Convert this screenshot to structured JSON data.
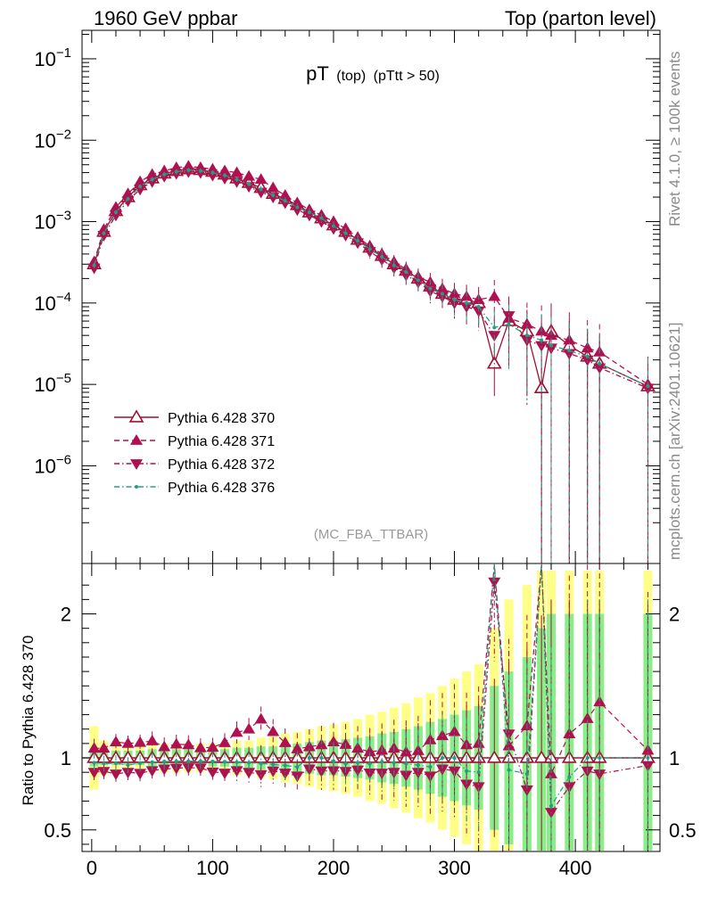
{
  "header": {
    "left": "1960 GeV ppbar",
    "right": "Top (parton level)"
  },
  "side_labels": {
    "rivet": "Rivet 4.1.0, ≥ 100k events",
    "mcplots": "mcplots.cern.ch [arXiv:2401.10621]"
  },
  "chart_data": {
    "type": "line",
    "title": "pT",
    "title_parts": {
      "main": "pT",
      "sub1": "(top)",
      "sub2": "(pTtt > 50)"
    },
    "watermark": "(MC_FBA_TTBAR)",
    "xlabel": "",
    "ylabel_ratio": "Ratio to Pythia 6.428 370",
    "xlim": [
      -8,
      470
    ],
    "ylim_log10": [
      -7.2,
      -0.65
    ],
    "ratio_ylim": [
      0.35,
      2.35
    ],
    "x_ticks": [
      0,
      100,
      200,
      300,
      400
    ],
    "x_tick_labels": [
      "0",
      "100",
      "200",
      "300",
      "400"
    ],
    "y_tick_exps": [
      -6,
      -5,
      -4,
      -3,
      -2,
      -1
    ],
    "y_tick_labels": [
      "10",
      "10",
      "10",
      "10",
      "10",
      "10"
    ],
    "y_tick_sups": [
      "−6",
      "−5",
      "−4",
      "−3",
      "−2",
      "−1"
    ],
    "ratio_ticks": [
      0.5,
      1,
      2
    ],
    "ratio_tick_labels": [
      "0.5",
      "1",
      "2"
    ],
    "legend": [
      {
        "label": "Pythia 6.428 370",
        "marker": "open-triangle-up",
        "dash": "solid",
        "color": "#a01030"
      },
      {
        "label": "Pythia 6.428 371",
        "marker": "triangle-up",
        "dash": "dash",
        "color": "#b01050"
      },
      {
        "label": "Pythia 6.428 372",
        "marker": "triangle-down",
        "dash": "dashdot",
        "color": "#b01050"
      },
      {
        "label": "Pythia 6.428 376",
        "marker": "dot",
        "dash": "dashdot",
        "color": "#20a080"
      }
    ],
    "series": [
      {
        "name": "Pythia 6.428 370",
        "x": [
          2,
          10,
          20,
          30,
          40,
          50,
          60,
          70,
          80,
          90,
          100,
          110,
          120,
          130,
          140,
          150,
          160,
          170,
          180,
          190,
          200,
          210,
          220,
          230,
          240,
          250,
          260,
          270,
          280,
          290,
          300,
          310,
          320,
          333,
          345,
          360,
          372,
          380,
          395,
          410,
          420,
          460
        ],
        "y": [
          0.0003,
          0.00075,
          0.00135,
          0.002,
          0.0028,
          0.0034,
          0.0039,
          0.0042,
          0.0044,
          0.0043,
          0.0041,
          0.0038,
          0.0034,
          0.003,
          0.0026,
          0.0022,
          0.0019,
          0.0016,
          0.0013,
          0.0011,
          0.0009,
          0.00075,
          0.0006,
          0.00048,
          0.00038,
          0.0003,
          0.00025,
          0.0002,
          0.00016,
          0.00013,
          0.00011,
          0.00011,
          0.0001,
          1.8e-05,
          6e-05,
          4.5e-05,
          9e-06,
          4.5e-05,
          3e-05,
          2.2e-05,
          1.8e-05,
          9.5e-06
        ]
      },
      {
        "name": "Pythia 6.428 371",
        "x": [
          2,
          10,
          20,
          30,
          40,
          50,
          60,
          70,
          80,
          90,
          100,
          110,
          120,
          130,
          140,
          150,
          160,
          170,
          180,
          190,
          200,
          210,
          220,
          230,
          240,
          250,
          260,
          270,
          280,
          290,
          300,
          310,
          320,
          333,
          345,
          360,
          372,
          380,
          395,
          410,
          420,
          460
        ],
        "y": [
          0.00032,
          0.0008,
          0.0015,
          0.0022,
          0.0031,
          0.0038,
          0.0042,
          0.0046,
          0.0048,
          0.0046,
          0.0044,
          0.0042,
          0.004,
          0.0036,
          0.0033,
          0.0026,
          0.0021,
          0.0017,
          0.0014,
          0.0012,
          0.001,
          0.00082,
          0.00064,
          0.0005,
          0.0004,
          0.00032,
          0.00026,
          0.00021,
          0.00018,
          0.00015,
          0.00013,
          0.00012,
          0.00011,
          0.00012,
          6.5e-05,
          5.5e-05,
          4.5e-05,
          4e-05,
          3.5e-05,
          2.8e-05,
          2.5e-05,
          1e-05
        ]
      },
      {
        "name": "Pythia 6.428 372",
        "x": [
          2,
          10,
          20,
          30,
          40,
          50,
          60,
          70,
          80,
          90,
          100,
          110,
          120,
          130,
          140,
          150,
          160,
          170,
          180,
          190,
          200,
          210,
          220,
          230,
          240,
          250,
          260,
          270,
          280,
          290,
          300,
          310,
          320,
          333,
          345,
          360,
          372,
          380,
          395,
          410,
          420,
          460
        ],
        "y": [
          0.00027,
          0.00068,
          0.0012,
          0.0018,
          0.0025,
          0.0031,
          0.0036,
          0.0039,
          0.0041,
          0.004,
          0.0037,
          0.0034,
          0.0031,
          0.0027,
          0.0023,
          0.002,
          0.0017,
          0.0014,
          0.0012,
          0.001,
          0.00082,
          0.00068,
          0.00055,
          0.00043,
          0.00034,
          0.00027,
          0.00022,
          0.00018,
          0.00014,
          0.00012,
          0.0001,
          9e-05,
          8e-05,
          4e-05,
          7e-05,
          3.5e-05,
          3e-05,
          2.8e-05,
          2.4e-05,
          2e-05,
          1.6e-05,
          9e-06
        ]
      },
      {
        "name": "Pythia 6.428 376",
        "x": [
          2,
          10,
          20,
          30,
          40,
          50,
          60,
          70,
          80,
          90,
          100,
          110,
          120,
          130,
          140,
          150,
          160,
          170,
          180,
          190,
          200,
          210,
          220,
          230,
          240,
          250,
          260,
          270,
          280,
          290,
          300,
          310,
          320,
          333,
          345,
          360,
          372,
          380,
          395,
          410,
          420,
          460
        ],
        "y": [
          0.00029,
          0.00072,
          0.0013,
          0.0019,
          0.0027,
          0.0033,
          0.0038,
          0.0041,
          0.0043,
          0.0042,
          0.004,
          0.0037,
          0.0033,
          0.0029,
          0.0025,
          0.0021,
          0.0018,
          0.0015,
          0.0013,
          0.0011,
          0.00088,
          0.00072,
          0.00058,
          0.00046,
          0.00037,
          0.00029,
          0.00024,
          0.00019,
          0.00015,
          0.00013,
          0.00011,
          0.0001,
          9e-05,
          5e-05,
          5.5e-05,
          4e-05,
          3.5e-05,
          3e-05,
          2.6e-05,
          2.2e-05,
          1.8e-05,
          9.5e-06
        ]
      }
    ],
    "ratio_band_inner": [
      0.06,
      0.05,
      0.05,
      0.05,
      0.05,
      0.06,
      0.06,
      0.06,
      0.06,
      0.06,
      0.06,
      0.06,
      0.07,
      0.07,
      0.08,
      0.08,
      0.09,
      0.1,
      0.11,
      0.12,
      0.12,
      0.13,
      0.14,
      0.15,
      0.17,
      0.18,
      0.2,
      0.22,
      0.25,
      0.27,
      0.3,
      0.33,
      0.36,
      0.5,
      0.6,
      0.7,
      0.9,
      1.0,
      1.0,
      1.0,
      1.0,
      1.0
    ],
    "ratio_band_outer": [
      0.22,
      0.12,
      0.1,
      0.09,
      0.09,
      0.1,
      0.1,
      0.1,
      0.1,
      0.1,
      0.1,
      0.11,
      0.12,
      0.12,
      0.14,
      0.15,
      0.17,
      0.18,
      0.2,
      0.22,
      0.23,
      0.25,
      0.27,
      0.3,
      0.32,
      0.35,
      0.38,
      0.42,
      0.45,
      0.5,
      0.55,
      0.6,
      0.65,
      0.9,
      1.1,
      1.2,
      1.3,
      1.3,
      1.3,
      1.3,
      1.3,
      1.3
    ]
  }
}
